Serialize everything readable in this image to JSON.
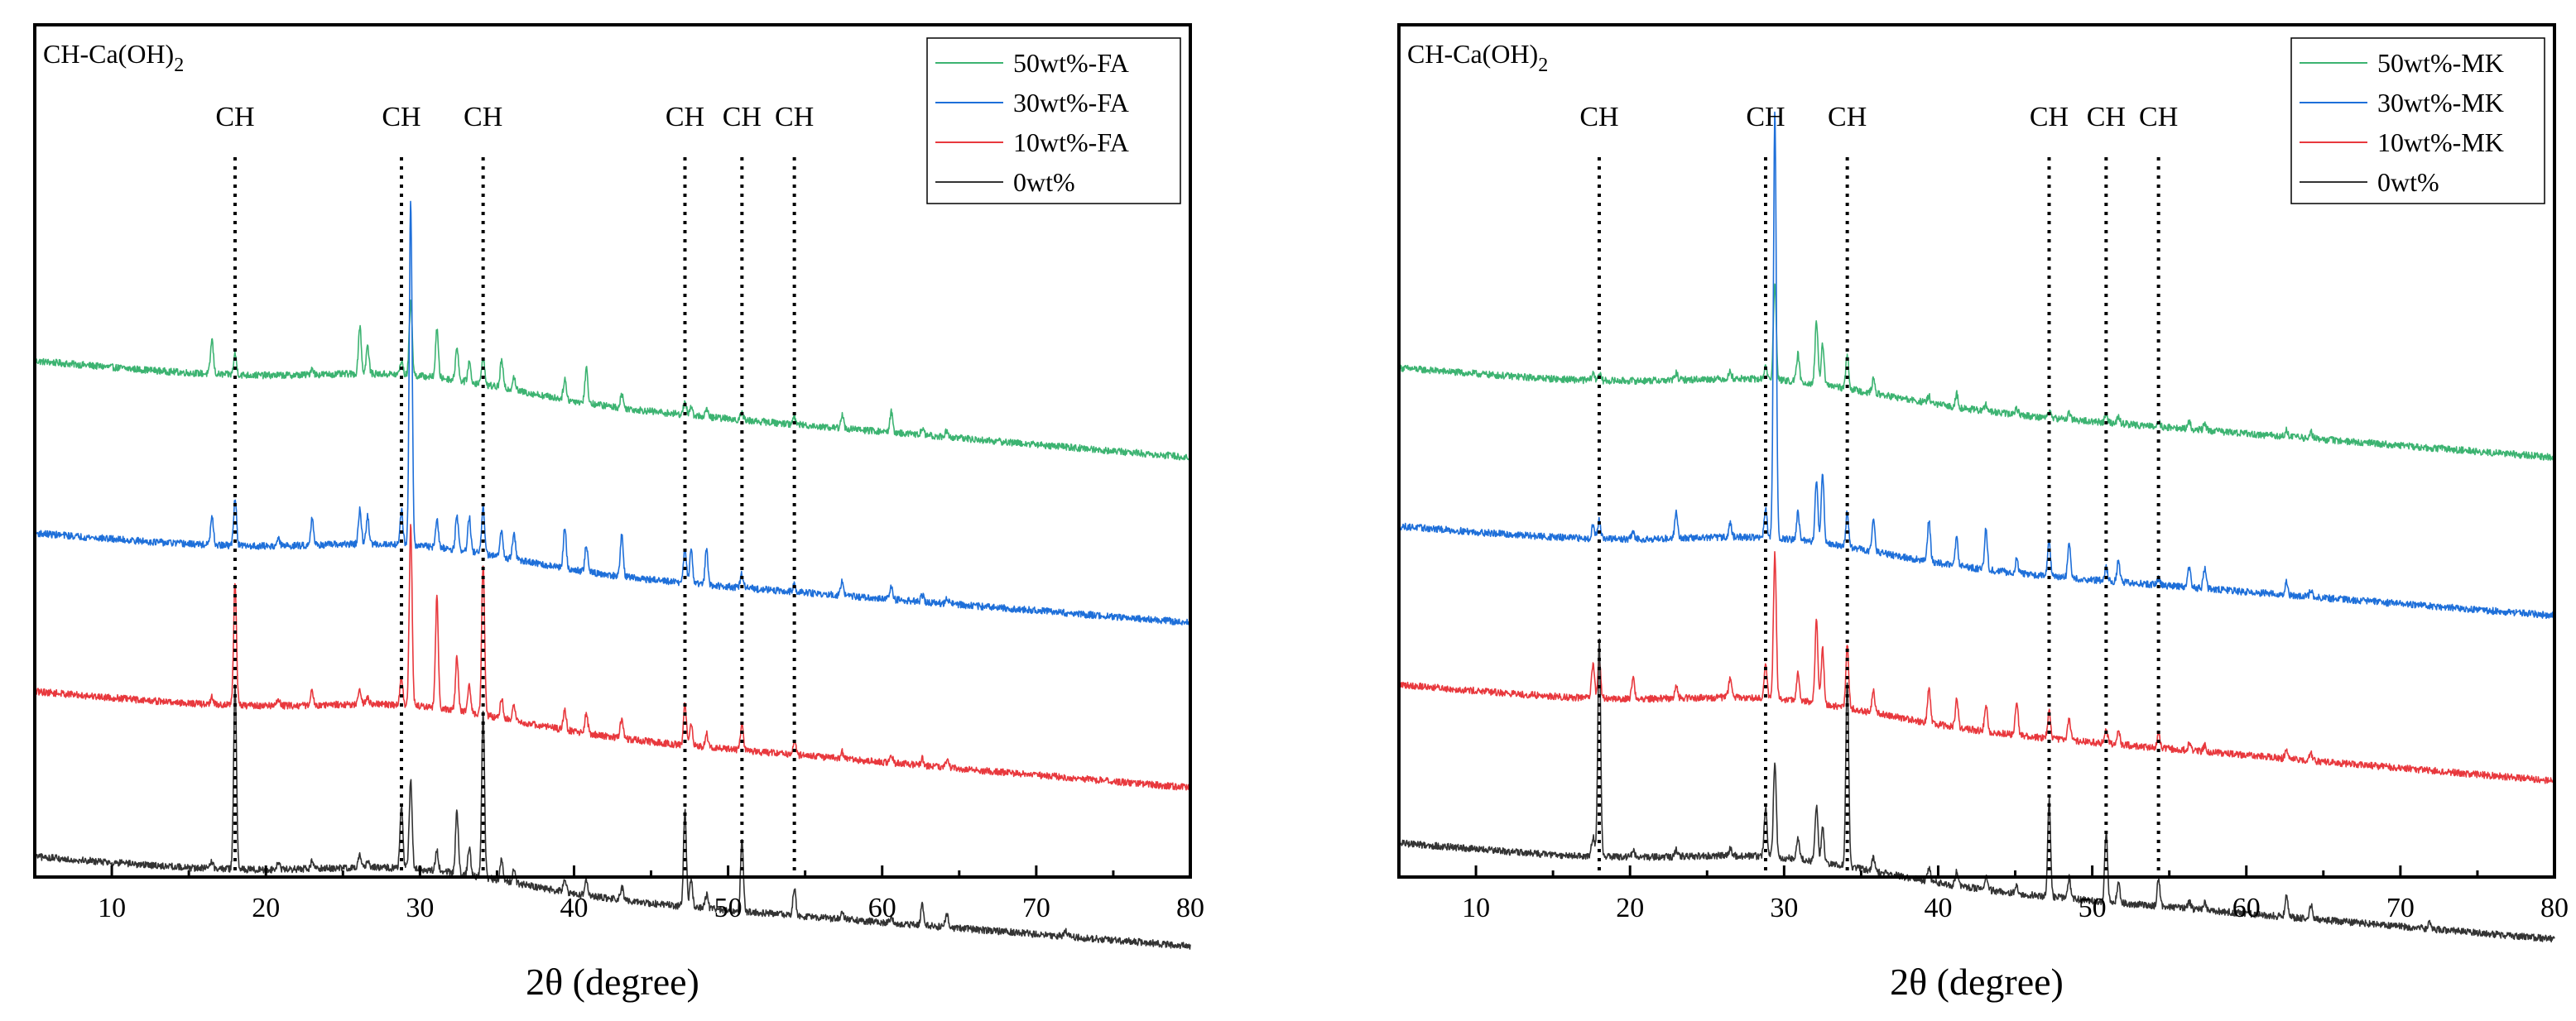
{
  "chart_data": [
    {
      "type": "line",
      "annotation": {
        "prefix": "CH-Ca(OH)",
        "subscript": "2"
      },
      "xlabel": "2θ (degree)",
      "ylabel": "",
      "xlim": [
        5,
        80
      ],
      "ylim": [
        0,
        100
      ],
      "x_ticks": [
        10,
        20,
        30,
        40,
        50,
        60,
        70,
        80
      ],
      "y_ticks_shown": false,
      "legend_position": "top-right",
      "reference_label": "CH",
      "reference_lines": [
        18.0,
        28.8,
        34.1,
        47.2,
        50.9,
        54.3
      ],
      "peak_positions": [
        16.5,
        18.0,
        20.8,
        23.0,
        26.1,
        26.6,
        28.8,
        29.4,
        31.1,
        32.4,
        33.2,
        34.1,
        35.3,
        36.1,
        39.4,
        40.8,
        43.1,
        47.2,
        47.6,
        48.6,
        50.9,
        54.3,
        57.4,
        60.6,
        62.6,
        64.2,
        71.9
      ],
      "series": [
        {
          "name": "50wt%-FA",
          "color": "#3CB371",
          "baseline_start": 74,
          "baseline_end": 60,
          "peaks": [
            5,
            3,
            0,
            1,
            7,
            4,
            2,
            11,
            7,
            5,
            3,
            4,
            4,
            2,
            3,
            5,
            2,
            2,
            1,
            1,
            1,
            1,
            2,
            3,
            1,
            1,
            0
          ]
        },
        {
          "name": "30wt%-FA",
          "color": "#1E6FD9",
          "baseline_start": 49,
          "baseline_end": 36,
          "peaks": [
            4,
            7,
            1,
            4,
            5,
            4,
            5,
            50,
            4,
            5,
            5,
            7,
            4,
            4,
            6,
            4,
            6,
            5,
            5,
            5,
            2,
            1,
            2,
            2,
            1,
            1,
            0
          ]
        },
        {
          "name": "10wt%-FA",
          "color": "#E8383D",
          "baseline_start": 26,
          "baseline_end": 12,
          "peaks": [
            1,
            18,
            1,
            2,
            2,
            1,
            4,
            26,
            16,
            8,
            4,
            22,
            3,
            2,
            3,
            3,
            3,
            6,
            3,
            2,
            4,
            2,
            1,
            1,
            1,
            1,
            0
          ]
        },
        {
          "name": "0wt%",
          "color": "#333333",
          "baseline_start": 2,
          "baseline_end": -11,
          "peaks": [
            1,
            27,
            1,
            1,
            2,
            1,
            9,
            13,
            3,
            9,
            4,
            24,
            3,
            2,
            2,
            2,
            2,
            14,
            4,
            2,
            10,
            4,
            1,
            1,
            3,
            2,
            1
          ]
        }
      ]
    },
    {
      "type": "line",
      "annotation": {
        "prefix": "CH-Ca(OH)",
        "subscript": "2"
      },
      "xlabel": "2θ (degree)",
      "ylabel": "",
      "xlim": [
        5,
        80
      ],
      "ylim": [
        0,
        100
      ],
      "x_ticks": [
        10,
        20,
        30,
        40,
        50,
        60,
        70,
        80
      ],
      "y_ticks_shown": false,
      "legend_position": "top-right",
      "reference_label": "CH",
      "reference_lines": [
        18.0,
        28.8,
        34.1,
        47.2,
        50.9,
        54.3
      ],
      "peak_positions": [
        17.6,
        18.0,
        20.2,
        23.0,
        26.5,
        28.8,
        29.4,
        30.9,
        32.1,
        32.5,
        34.1,
        35.8,
        39.4,
        41.2,
        43.1,
        45.1,
        47.2,
        48.5,
        50.9,
        51.7,
        54.3,
        56.3,
        57.3,
        62.6,
        64.2,
        71.9
      ],
      "series": [
        {
          "name": "50wt%-MK",
          "color": "#3CB371",
          "baseline_start": 73,
          "baseline_end": 60,
          "peaks": [
            1,
            1,
            0,
            1,
            1,
            2,
            14,
            4,
            9,
            6,
            5,
            2,
            1,
            2,
            1,
            1,
            1,
            1,
            1,
            1,
            1,
            1,
            1,
            1,
            1,
            0
          ]
        },
        {
          "name": "30wt%-MK",
          "color": "#1E6FD9",
          "baseline_start": 50,
          "baseline_end": 37,
          "peaks": [
            2,
            3,
            1,
            4,
            2,
            4,
            62,
            4,
            9,
            10,
            5,
            5,
            6,
            4,
            6,
            2,
            5,
            5,
            2,
            3,
            1,
            3,
            3,
            2,
            1,
            0
          ]
        },
        {
          "name": "10wt%-MK",
          "color": "#E8383D",
          "baseline_start": 27,
          "baseline_end": 13,
          "peaks": [
            5,
            6,
            3,
            2,
            3,
            5,
            21,
            4,
            12,
            8,
            9,
            3,
            5,
            4,
            4,
            5,
            4,
            3,
            2,
            2,
            2,
            1,
            1,
            1,
            1,
            0
          ]
        },
        {
          "name": "0wt%",
          "color": "#333333",
          "baseline_start": 4,
          "baseline_end": -10,
          "peaks": [
            3,
            32,
            1,
            1,
            1,
            7,
            14,
            3,
            8,
            5,
            27,
            2,
            2,
            2,
            2,
            1,
            14,
            3,
            10,
            3,
            4,
            1,
            1,
            3,
            2,
            1
          ]
        }
      ]
    }
  ]
}
